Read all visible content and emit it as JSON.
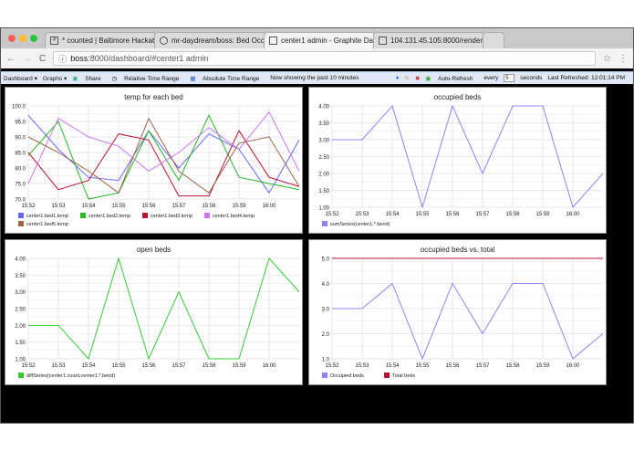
{
  "browser": {
    "tabs": [
      {
        "title": "* counted | Baltimore Hackath",
        "icon": "slack-icon"
      },
      {
        "title": "mr-daydream/boss: Bed Occu",
        "icon": "github-icon"
      },
      {
        "title": "center1 admin - Graphite Dash",
        "icon": "page-icon",
        "active": true
      },
      {
        "title": "104.131.45.105:8000/render",
        "icon": "page-icon"
      }
    ],
    "url_host": "boss",
    "url_rest": ":8000/dashboard/#center1 admin"
  },
  "toolbar": {
    "dashboard": "Dashboard ▾",
    "graphs": "Graphs ▾",
    "share": "Share",
    "relative": "Relative Time Range",
    "absolute": "Absolute Time Range",
    "status": "Now showing the past 10 minutes",
    "auto_refresh": "Auto-Refresh",
    "every": "every",
    "interval": "5",
    "seconds": "seconds",
    "last_refreshed": "Last Refreshed: 12:01:14 PM"
  },
  "chart_data": [
    {
      "type": "line",
      "title": "temp for each bed",
      "x": [
        "15:52",
        "15:53",
        "15:54",
        "15:55",
        "15:56",
        "15:57",
        "15:58",
        "15:59",
        "16:00",
        "16:01"
      ],
      "xticks": [
        "15:52",
        "15:53",
        "15:54",
        "15:55",
        "15:56",
        "15:57",
        "15:58",
        "15:59",
        "16:00"
      ],
      "ylim": [
        70,
        100
      ],
      "yticks": [
        "70.0",
        "75.0",
        "80.0",
        "85.0",
        "90.0",
        "95.0",
        "100.0"
      ],
      "grid": true,
      "legend": "bottom",
      "series": [
        {
          "name": "center1.bed1.temp",
          "color": "#6666ff",
          "values": [
            97,
            86,
            77,
            76,
            92,
            80,
            91,
            86,
            72,
            89
          ]
        },
        {
          "name": "center1.bed2.temp",
          "color": "#22bb22",
          "values": [
            84,
            95,
            70,
            72,
            92,
            76,
            97,
            77,
            75,
            73
          ]
        },
        {
          "name": "center1.bed3.temp",
          "color": "#bb1133",
          "values": [
            85,
            73,
            76,
            91,
            89,
            71,
            71,
            92,
            77,
            74
          ]
        },
        {
          "name": "center1.bed4.temp",
          "color": "#cc77ee",
          "values": [
            75,
            96,
            90,
            87,
            79,
            85,
            93,
            86,
            98,
            79
          ]
        },
        {
          "name": "center1.bed5.temp",
          "color": "#996644",
          "values": [
            90,
            85,
            79,
            72,
            96,
            79,
            72,
            88,
            90,
            74
          ]
        }
      ]
    },
    {
      "type": "line",
      "title": "occupied beds",
      "x": [
        "15:52",
        "15:53",
        "15:54",
        "15:55",
        "15:56",
        "15:57",
        "15:58",
        "15:59",
        "16:00",
        "16:01"
      ],
      "xticks": [
        "15:52",
        "15:53",
        "15:54",
        "15:55",
        "15:56",
        "15:57",
        "15:58",
        "15:59",
        "16:00"
      ],
      "ylim": [
        1,
        4
      ],
      "yticks": [
        "1.00",
        "1.50",
        "2.00",
        "2.50",
        "3.00",
        "3.50",
        "4.00"
      ],
      "grid": true,
      "legend": "bottom",
      "series": [
        {
          "name": "sumSeries(center1.*.bend)",
          "color": "#8888ee",
          "values": [
            3,
            3,
            4,
            1,
            4,
            2,
            4,
            4,
            1,
            2
          ]
        }
      ]
    },
    {
      "type": "line",
      "title": "open beds",
      "x": [
        "15:52",
        "15:53",
        "15:54",
        "15:55",
        "15:56",
        "15:57",
        "15:58",
        "15:59",
        "16:00",
        "16:01"
      ],
      "xticks": [
        "15:52",
        "15:53",
        "15:54",
        "15:55",
        "15:56",
        "15:57",
        "15:58",
        "15:59",
        "16:00"
      ],
      "ylim": [
        1,
        4
      ],
      "yticks": [
        "1.00",
        "1.50",
        "2.00",
        "2.50",
        "3.00",
        "3.50",
        "4.00"
      ],
      "grid": true,
      "legend": "bottom",
      "series": [
        {
          "name": "diffSeries(center1.count,center1.*.bend)",
          "color": "#33cc33",
          "values": [
            2,
            2,
            1,
            4,
            1,
            3,
            1,
            1,
            4,
            3
          ]
        }
      ]
    },
    {
      "type": "line",
      "title": "occupied beds vs. total",
      "x": [
        "15:52",
        "15:53",
        "15:54",
        "15:55",
        "15:56",
        "15:57",
        "15:58",
        "15:59",
        "16:00",
        "16:01"
      ],
      "xticks": [
        "15:52",
        "15:53",
        "15:54",
        "15:55",
        "15:56",
        "15:57",
        "15:58",
        "15:59",
        "16:00"
      ],
      "ylim": [
        1,
        5
      ],
      "yticks": [
        "1.0",
        "2.0",
        "3.0",
        "4.0",
        "5.0"
      ],
      "grid": true,
      "legend": "bottom",
      "series": [
        {
          "name": "Occupied beds",
          "color": "#8888ee",
          "values": [
            3,
            3,
            4,
            1,
            4,
            2,
            4,
            4,
            1,
            2
          ]
        },
        {
          "name": "Total beds",
          "color": "#bb1133",
          "values": [
            5,
            5,
            5,
            5,
            5,
            5,
            5,
            5,
            5,
            5
          ]
        }
      ]
    }
  ]
}
